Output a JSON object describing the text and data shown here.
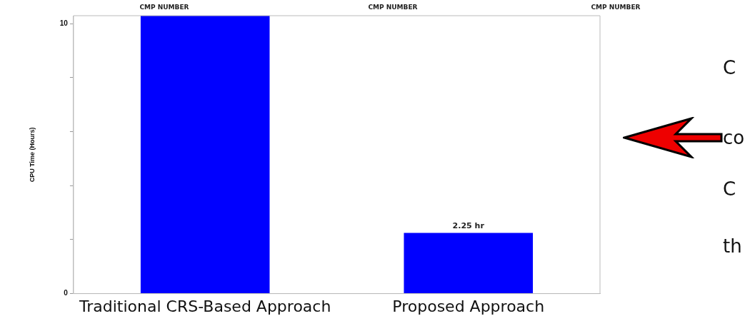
{
  "chart_data": {
    "type": "bar",
    "categories": [
      "Traditional CRS-Based Approach",
      "Proposed Approach"
    ],
    "values": [
      10.3,
      2.25
    ],
    "value_labels": [
      null,
      "2.25 hr"
    ],
    "color": "#0000ff",
    "ylabel": "CPU Time (Hours)",
    "ylim": [
      0,
      10.3
    ],
    "yticks": [
      0,
      {
        "value": 2,
        "label": null
      },
      {
        "value": 4,
        "label": null
      },
      {
        "value": 6,
        "label": null
      },
      {
        "value": 8,
        "label": null
      },
      10
    ],
    "grid": false,
    "legend": false,
    "annotations": [
      "CMP NUMBER",
      "CMP NUMBER",
      "CMP NUMBER",
      "C",
      "co",
      "C",
      "th"
    ]
  }
}
